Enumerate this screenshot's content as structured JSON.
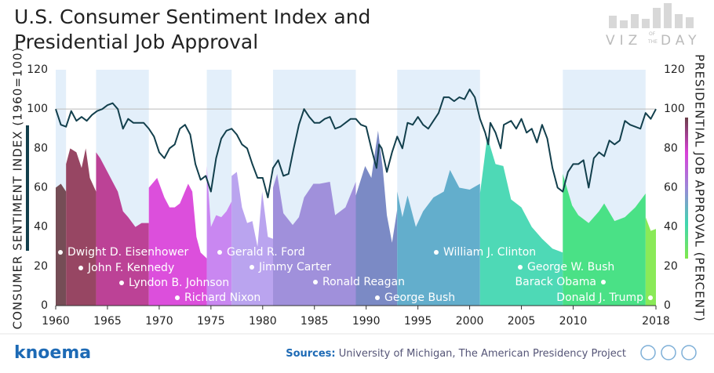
{
  "chart_data": {
    "type": "line",
    "title_lines": [
      "U.S. Consumer Sentiment Index and",
      "Presidential Job Approval"
    ],
    "logo": {
      "top": "VIZ",
      "of": "OF",
      "the": "THE",
      "bottom": "DAY"
    },
    "ylabel": "CONSUMER SENTIMENT INDEX (1960=100)",
    "y2label": "PRESIDENTIAL JOB APPROVAL (PERCENT)",
    "brand": "knoema",
    "sources_label": "Sources:",
    "sources_text": "University of Michigan, The American Presidency Project",
    "xlim": [
      1960,
      2018
    ],
    "xticks": [
      1960,
      1965,
      1970,
      1975,
      1980,
      1985,
      1990,
      1995,
      2000,
      2005,
      2010,
      2018
    ],
    "ylim": [
      0,
      120
    ],
    "yticks": [
      0,
      20,
      40,
      60,
      80,
      100,
      120
    ],
    "y2lim": [
      0,
      120
    ],
    "y2ticks": [
      0,
      20,
      40,
      60,
      80,
      100,
      120
    ],
    "hline": 100,
    "band_color": "#e3effa",
    "sentiment": {
      "color": "#123f4c",
      "x": [
        1960,
        1960.5,
        1961,
        1961.5,
        1962,
        1962.5,
        1963,
        1963.5,
        1964,
        1964.5,
        1965,
        1965.5,
        1966,
        1966.5,
        1967,
        1967.5,
        1968,
        1968.5,
        1969,
        1969.5,
        1970,
        1970.5,
        1971,
        1971.5,
        1972,
        1972.5,
        1973,
        1973.5,
        1974,
        1974.5,
        1975,
        1975.5,
        1976,
        1976.5,
        1977,
        1977.5,
        1978,
        1978.5,
        1979,
        1979.5,
        1980,
        1980.5,
        1981,
        1981.5,
        1982,
        1982.5,
        1983,
        1983.5,
        1984,
        1984.5,
        1985,
        1985.5,
        1986,
        1986.5,
        1987,
        1987.5,
        1988,
        1988.5,
        1989,
        1989.5,
        1990,
        1990.5,
        1991,
        1991.25,
        1991.5,
        1992,
        1992.5,
        1993,
        1993.5,
        1994,
        1994.5,
        1995,
        1995.5,
        1996,
        1996.5,
        1997,
        1997.5,
        1998,
        1998.5,
        1999,
        1999.5,
        2000,
        2000.5,
        2001,
        2001.5,
        2001.8,
        2002,
        2002.5,
        2003,
        2003.3,
        2004,
        2004.5,
        2005,
        2005.5,
        2006,
        2006.5,
        2007,
        2007.5,
        2008,
        2008.5,
        2009,
        2009.5,
        2010,
        2010.5,
        2011,
        2011.5,
        2012,
        2012.5,
        2013,
        2013.5,
        2014,
        2014.5,
        2015,
        2015.5,
        2016,
        2016.5,
        2017,
        2017.5,
        2018
      ],
      "values": [
        100,
        92,
        91,
        99,
        94,
        96,
        94,
        97,
        99,
        100,
        102,
        103,
        100,
        90,
        95,
        93,
        93,
        93,
        90,
        86,
        78,
        75,
        80,
        82,
        90,
        92,
        87,
        72,
        64,
        66,
        58,
        75,
        85,
        89,
        90,
        87,
        82,
        80,
        72,
        65,
        65,
        55,
        70,
        74,
        66,
        67,
        80,
        92,
        100,
        96,
        93,
        93,
        95,
        96,
        90,
        91,
        93,
        95,
        95,
        92,
        91,
        80,
        70,
        82,
        80,
        68,
        78,
        86,
        80,
        93,
        92,
        96,
        92,
        90,
        94,
        98,
        106,
        106,
        104,
        106,
        105,
        110,
        106,
        95,
        88,
        82,
        93,
        88,
        80,
        92,
        94,
        90,
        95,
        88,
        90,
        83,
        92,
        85,
        70,
        60,
        58,
        68,
        72,
        72,
        74,
        60,
        75,
        78,
        76,
        84,
        82,
        84,
        94,
        92,
        91,
        90,
        98,
        95,
        100
      ]
    },
    "presidents": [
      {
        "name": "Dwight D. Eisenhower",
        "color": "#6b3f48",
        "x": [
          1960,
          1960.5,
          1961
        ],
        "values": [
          60,
          62,
          58
        ]
      },
      {
        "name": "John F. Kennedy",
        "color": "#8e3656",
        "x": [
          1961,
          1961.4,
          1962,
          1962.5,
          1962.9,
          1963.3,
          1963.9
        ],
        "values": [
          72,
          80,
          78,
          70,
          80,
          65,
          58
        ]
      },
      {
        "name": "Lyndon B. Johnson",
        "color": "#b8338d",
        "x": [
          1963.9,
          1964.3,
          1965,
          1965.5,
          1966,
          1966.5,
          1967,
          1967.7,
          1968.3,
          1969
        ],
        "values": [
          78,
          75,
          68,
          63,
          58,
          48,
          45,
          40,
          42,
          42
        ]
      },
      {
        "name": "Richard Nixon",
        "color": "#d940d9",
        "x": [
          1969,
          1969.8,
          1970.5,
          1971,
          1971.5,
          1972,
          1972.8,
          1973.2,
          1973.6,
          1974,
          1974.6
        ],
        "values": [
          60,
          65,
          55,
          50,
          50,
          52,
          62,
          58,
          35,
          27,
          24
        ]
      },
      {
        "name": "Gerald R. Ford",
        "color": "#c77ef0",
        "x": [
          1974.6,
          1975,
          1975.5,
          1976,
          1976.5,
          1977
        ],
        "values": [
          71,
          40,
          46,
          45,
          48,
          53
        ]
      },
      {
        "name": "Jimmy Carter",
        "color": "#b49cee",
        "x": [
          1977,
          1977.5,
          1978,
          1978.5,
          1979,
          1979.5,
          1979.95,
          1980.5,
          1981
        ],
        "values": [
          66,
          68,
          50,
          42,
          43,
          30,
          58,
          35,
          34
        ]
      },
      {
        "name": "Ronald Reagan",
        "color": "#9a88d8",
        "x": [
          1981,
          1981.4,
          1982,
          1982.9,
          1983.5,
          1984,
          1984.9,
          1985.5,
          1986.5,
          1987,
          1988,
          1989
        ],
        "values": [
          60,
          67,
          47,
          41,
          45,
          55,
          62,
          62,
          63,
          46,
          50,
          63
        ]
      },
      {
        "name": "George Bush",
        "color": "#7080c0",
        "x": [
          1989,
          1989.9,
          1990.5,
          1991.15,
          1991.6,
          1992,
          1992.5,
          1993
        ],
        "values": [
          56,
          71,
          65,
          89,
          70,
          46,
          32,
          49
        ]
      },
      {
        "name": "William J. Clinton",
        "color": "#58a8c8",
        "x": [
          1993,
          1993.5,
          1994,
          1994.8,
          1995.5,
          1996.5,
          1997.5,
          1998.1,
          1999,
          2000,
          2001
        ],
        "values": [
          58,
          45,
          56,
          40,
          48,
          55,
          58,
          69,
          60,
          59,
          62
        ]
      },
      {
        "name": "George W. Bush",
        "color": "#3fd6b0",
        "x": [
          2001,
          2001.7,
          2002.5,
          2003.25,
          2004,
          2005,
          2006,
          2007,
          2008,
          2009
        ],
        "values": [
          57,
          86,
          72,
          71,
          54,
          50,
          40,
          34,
          29,
          27
        ]
      },
      {
        "name": "Barack Obama",
        "color": "#3ddf7c",
        "x": [
          2009,
          2009.9,
          2010.5,
          2011.5,
          2012.5,
          2013,
          2014,
          2015,
          2016,
          2017
        ],
        "values": [
          67,
          51,
          46,
          42,
          48,
          52,
          43,
          45,
          50,
          57
        ]
      },
      {
        "name": "Donald J. Trump",
        "color": "#80e84a",
        "x": [
          2017,
          2017.5,
          2018
        ],
        "values": [
          45,
          38,
          39
        ]
      }
    ]
  }
}
